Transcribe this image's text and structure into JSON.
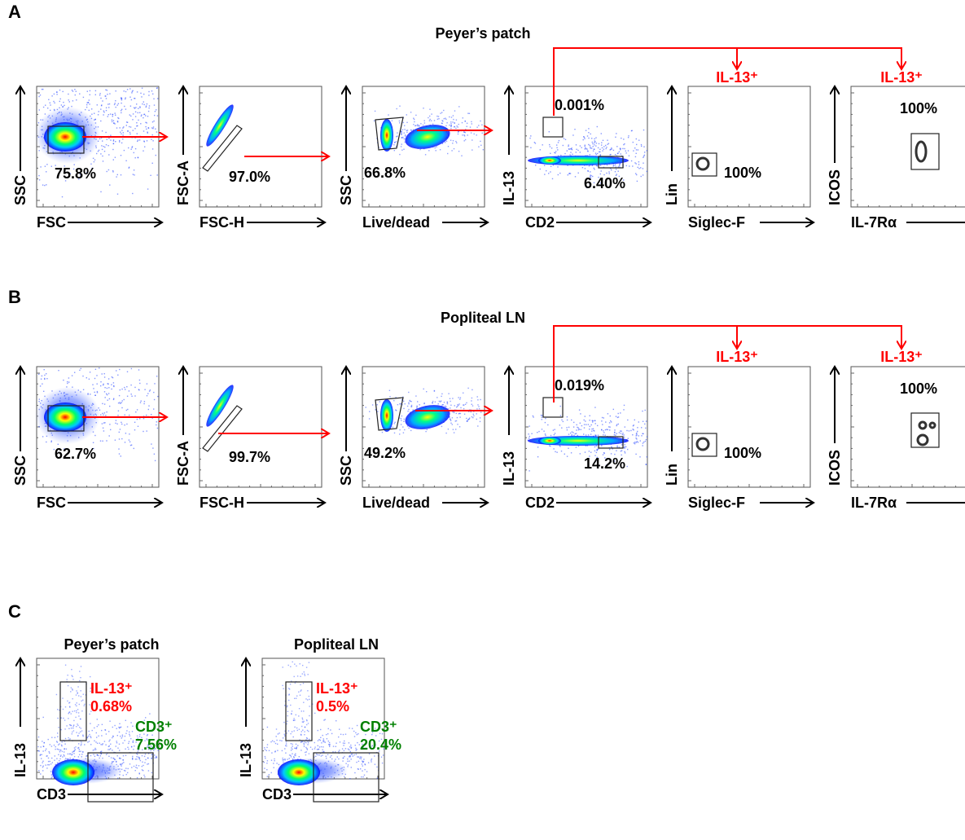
{
  "panels": {
    "A": {
      "letter": "A",
      "title": "Peyer’s patch",
      "gate_targets": [
        "IL-13⁺",
        "IL-13⁺"
      ],
      "plots": [
        {
          "ylabel": "SSC",
          "xlabel": "FSC",
          "percent": "75.8%"
        },
        {
          "ylabel": "FSC-A",
          "xlabel": "FSC-H",
          "percent": "97.0%"
        },
        {
          "ylabel": "SSC",
          "xlabel": "Live/dead",
          "percent": "66.8%"
        },
        {
          "ylabel": "IL-13",
          "xlabel": "CD2",
          "percent_top": "0.001%",
          "percent_bottom": "6.40%"
        },
        {
          "ylabel": "Lin",
          "xlabel": "Siglec-F",
          "percent": "100%"
        },
        {
          "ylabel": "ICOS",
          "xlabel": "IL-7Rα",
          "percent": "100%"
        }
      ]
    },
    "B": {
      "letter": "B",
      "title": "Popliteal LN",
      "gate_targets": [
        "IL-13⁺",
        "IL-13⁺"
      ],
      "plots": [
        {
          "ylabel": "SSC",
          "xlabel": "FSC",
          "percent": "62.7%"
        },
        {
          "ylabel": "FSC-A",
          "xlabel": "FSC-H",
          "percent": "99.7%"
        },
        {
          "ylabel": "SSC",
          "xlabel": "Live/dead",
          "percent": "49.2%"
        },
        {
          "ylabel": "IL-13",
          "xlabel": "CD2",
          "percent_top": "0.019%",
          "percent_bottom": "14.2%"
        },
        {
          "ylabel": "Lin",
          "xlabel": "Siglec-F",
          "percent": "100%"
        },
        {
          "ylabel": "ICOS",
          "xlabel": "IL-7Rα",
          "percent": "100%"
        }
      ]
    },
    "C": {
      "letter": "C",
      "plots": [
        {
          "title": "Peyer’s patch",
          "ylabel": "IL-13",
          "xlabel": "CD3",
          "il13_label": "IL-13⁺",
          "il13_percent": "0.68%",
          "cd3_label": "CD3⁺",
          "cd3_percent": "7.56%"
        },
        {
          "title": "Popliteal LN",
          "ylabel": "IL-13",
          "xlabel": "CD3",
          "il13_label": "IL-13⁺",
          "il13_percent": "0.5%",
          "cd3_label": "CD3⁺",
          "cd3_percent": "20.4%"
        }
      ]
    }
  },
  "colors": {
    "gating_arrow": "#ff0000",
    "il13_gate_label": "#ff0000",
    "cd3_gate_label": "#008000",
    "density_low": "#0000ff",
    "density_mid": "#00ffff",
    "density_high": "#ff0000"
  }
}
